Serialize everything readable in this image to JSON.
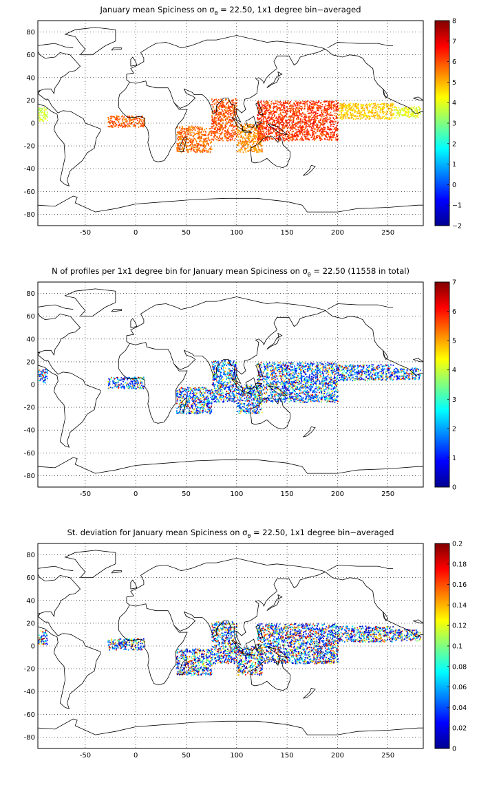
{
  "colormap": [
    "#00008f",
    "#0000ff",
    "#0080ff",
    "#00ffff",
    "#80ff80",
    "#ffff00",
    "#ff8000",
    "#ff0000",
    "#800000"
  ],
  "map_extent": {
    "lon": [
      -97,
      285
    ],
    "lat": [
      -90,
      90
    ]
  },
  "x_ticks": [
    "-50",
    "0",
    "50",
    "100",
    "150",
    "200",
    "250"
  ],
  "y_ticks": [
    "80",
    "60",
    "40",
    "20",
    "0",
    "-20",
    "-40",
    "-60",
    "-80"
  ],
  "panels": [
    {
      "title_pre": "January mean Spiciness on σ",
      "title_sub": "θ",
      "title_post": " = 22.50, 1x1 degree bin−averaged",
      "colorbar_ticks": [
        "8",
        "7",
        "6",
        "5",
        "4",
        "3",
        "2",
        "1",
        "0",
        "−1",
        "−2"
      ]
    },
    {
      "title_pre": "N of profiles per 1x1 degree bin for January mean Spiciness on σ",
      "title_sub": "θ",
      "title_post": " = 22.50 (11558 in total)",
      "colorbar_ticks": [
        "7",
        "6",
        "5",
        "4",
        "3",
        "2",
        "1",
        "0"
      ]
    },
    {
      "title_pre": "St. deviation for January mean Spiciness on σ",
      "title_sub": "θ",
      "title_post": " = 22.50, 1x1 degree bin−averaged",
      "colorbar_ticks": [
        "0.2",
        "0.18",
        "0.16",
        "0.14",
        "0.12",
        "0.1",
        "0.08",
        "0.06",
        "0.04",
        "0.02",
        "0"
      ]
    }
  ],
  "chart_data": [
    {
      "type": "heatmap",
      "title": "January mean Spiciness on σθ = 22.50, 1x1 degree bin−averaged",
      "x_range": [
        -97,
        285
      ],
      "y_range": [
        -90,
        90
      ],
      "colorbar_range": [
        -2,
        8
      ],
      "regions": [
        {
          "lon": [
            -97,
            -88
          ],
          "lat": [
            2,
            14
          ],
          "value": 3.7
        },
        {
          "lon": [
            -28,
            8
          ],
          "lat": [
            -3,
            7
          ],
          "value": 5.8
        },
        {
          "lon": [
            40,
            75
          ],
          "lat": [
            -25,
            -2
          ],
          "value": 5.7
        },
        {
          "lon": [
            75,
            100
          ],
          "lat": [
            -15,
            22
          ],
          "value": 5.9
        },
        {
          "lon": [
            100,
            125
          ],
          "lat": [
            -25,
            0
          ],
          "value": 5.4
        },
        {
          "lon": [
            120,
            200
          ],
          "lat": [
            -15,
            20
          ],
          "value": 6.2
        },
        {
          "lon": [
            200,
            255
          ],
          "lat": [
            4,
            18
          ],
          "value": 4.8
        },
        {
          "lon": [
            255,
            282
          ],
          "lat": [
            5,
            15
          ],
          "value": 4.1
        }
      ]
    },
    {
      "type": "heatmap",
      "title": "N of profiles per 1x1 degree bin for January mean Spiciness on σθ = 22.50 (11558 in total)",
      "x_range": [
        -97,
        285
      ],
      "y_range": [
        -90,
        90
      ],
      "colorbar_range": [
        0,
        7
      ],
      "total": 11558,
      "regions": [
        {
          "lon": [
            -97,
            -88
          ],
          "lat": [
            2,
            14
          ],
          "value": 2
        },
        {
          "lon": [
            -28,
            8
          ],
          "lat": [
            -3,
            7
          ],
          "value": 1.5
        },
        {
          "lon": [
            40,
            75
          ],
          "lat": [
            -25,
            -2
          ],
          "value": 1.5
        },
        {
          "lon": [
            75,
            100
          ],
          "lat": [
            -15,
            22
          ],
          "value": 3
        },
        {
          "lon": [
            100,
            125
          ],
          "lat": [
            -25,
            0
          ],
          "value": 1.5
        },
        {
          "lon": [
            120,
            200
          ],
          "lat": [
            -15,
            20
          ],
          "value": 2
        },
        {
          "lon": [
            200,
            255
          ],
          "lat": [
            4,
            18
          ],
          "value": 2
        },
        {
          "lon": [
            255,
            282
          ],
          "lat": [
            5,
            15
          ],
          "value": 2.5
        }
      ]
    },
    {
      "type": "heatmap",
      "title": "St. deviation for January mean Spiciness on σθ = 22.50, 1x1 degree bin−averaged",
      "x_range": [
        -97,
        285
      ],
      "y_range": [
        -90,
        90
      ],
      "colorbar_range": [
        0,
        0.2
      ],
      "regions": [
        {
          "lon": [
            -97,
            -88
          ],
          "lat": [
            2,
            14
          ],
          "value": 0.11
        },
        {
          "lon": [
            -28,
            8
          ],
          "lat": [
            -3,
            7
          ],
          "value": 0.09
        },
        {
          "lon": [
            40,
            75
          ],
          "lat": [
            -25,
            -2
          ],
          "value": 0.08
        },
        {
          "lon": [
            75,
            100
          ],
          "lat": [
            -15,
            22
          ],
          "value": 0.13
        },
        {
          "lon": [
            100,
            125
          ],
          "lat": [
            -25,
            0
          ],
          "value": 0.08
        },
        {
          "lon": [
            120,
            200
          ],
          "lat": [
            -15,
            20
          ],
          "value": 0.09
        },
        {
          "lon": [
            200,
            255
          ],
          "lat": [
            4,
            18
          ],
          "value": 0.1
        },
        {
          "lon": [
            255,
            282
          ],
          "lat": [
            5,
            15
          ],
          "value": 0.12
        }
      ]
    }
  ]
}
